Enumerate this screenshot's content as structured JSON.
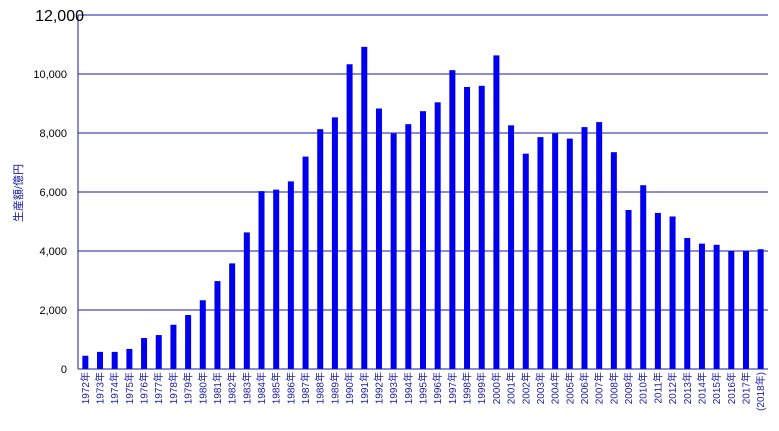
{
  "chart_data": {
    "type": "bar",
    "title": "",
    "xlabel": "",
    "ylabel": "生産額/億円",
    "ylim": [
      0,
      12000
    ],
    "yticks": [
      "0",
      "2,000",
      "4,000",
      "6,000",
      "8,000",
      "10,000",
      "12,000"
    ],
    "categories": [
      "1972年",
      "1973年",
      "1974年",
      "1975年",
      "1976年",
      "1977年",
      "1978年",
      "1979年",
      "1980年",
      "1981年",
      "1982年",
      "1983年",
      "1984年",
      "1985年",
      "1986年",
      "1987年",
      "1988年",
      "1989年",
      "1990年",
      "1991年",
      "1992年",
      "1993年",
      "1994年",
      "1995年",
      "1996年",
      "1997年",
      "1998年",
      "1999年",
      "2000年",
      "2001年",
      "2002年",
      "2003年",
      "2004年",
      "2005年",
      "2006年",
      "2007年",
      "2008年",
      "2009年",
      "2010年",
      "2011年",
      "2012年",
      "2013年",
      "2014年",
      "2015年",
      "2016年",
      "2017年",
      "(2018年)"
    ],
    "values": [
      450,
      580,
      580,
      680,
      1050,
      1150,
      1500,
      1830,
      2330,
      2980,
      3580,
      4630,
      6030,
      6080,
      6360,
      7200,
      8130,
      8530,
      10330,
      10920,
      8830,
      7980,
      8300,
      8740,
      9040,
      10130,
      9560,
      9600,
      10630,
      8260,
      7300,
      7860,
      7980,
      7810,
      8200,
      8370,
      7350,
      5390,
      6230,
      5290,
      5170,
      4440,
      4250,
      4210,
      3990,
      3990,
      4060
    ],
    "grid": true,
    "colors": {
      "bar": "#0000ee",
      "grid": "#1a1aa6",
      "tick_text": "#1a1aa6"
    }
  }
}
